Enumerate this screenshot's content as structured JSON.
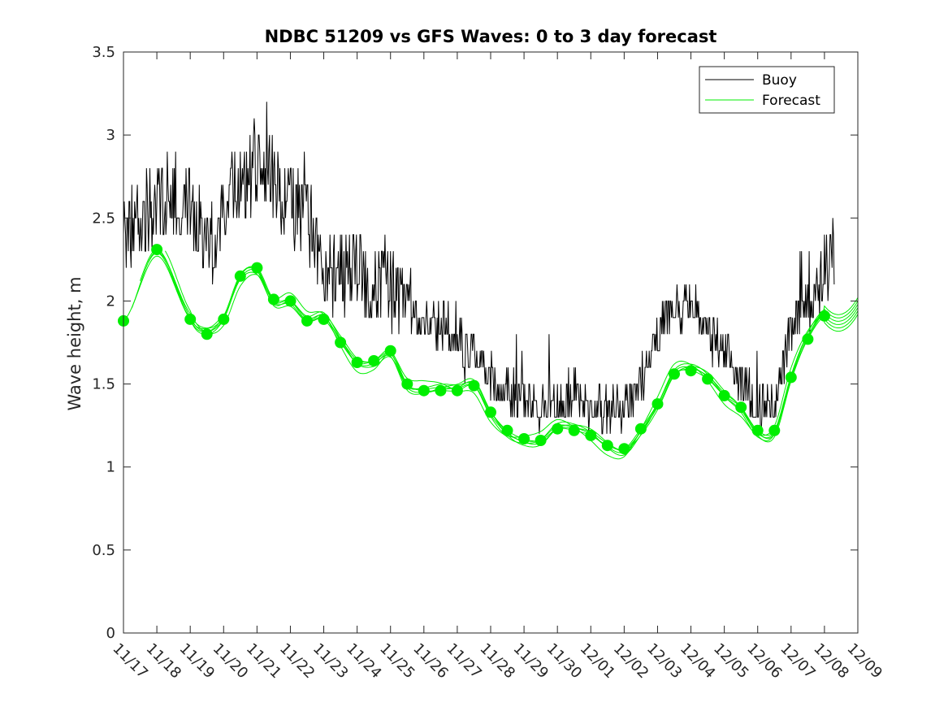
{
  "chart_data": {
    "type": "line",
    "title": "NDBC 51209 vs GFS Waves: 0 to 3 day forecast",
    "xlabel": "",
    "ylabel": "Wave height, m",
    "xlim": [
      0,
      22
    ],
    "ylim": [
      0,
      3.5
    ],
    "y_ticks": [
      0,
      0.5,
      1,
      1.5,
      2,
      2.5,
      3,
      3.5
    ],
    "y_tick_labels": [
      "0",
      "0.5",
      "1",
      "1.5",
      "2",
      "2.5",
      "3",
      "3.5"
    ],
    "x_tick_labels": [
      "11/17",
      "11/18",
      "11/19",
      "11/20",
      "11/21",
      "11/22",
      "11/23",
      "11/24",
      "11/25",
      "11/26",
      "11/27",
      "11/28",
      "11/29",
      "11/30",
      "12/01",
      "12/02",
      "12/03",
      "12/04",
      "12/05",
      "12/06",
      "12/07",
      "12/08",
      "12/09"
    ],
    "legend": {
      "placement": "top-right",
      "entries": [
        {
          "label": "Buoy",
          "color": "#000000"
        },
        {
          "label": "Forecast",
          "color": "#00ee00"
        }
      ]
    },
    "colors": {
      "buoy": "#000000",
      "forecast": "#00ee00",
      "marker": "#00ee00"
    },
    "buoy_anchors": [
      [
        0,
        2.4
      ],
      [
        0.5,
        2.5
      ],
      [
        1,
        2.6
      ],
      [
        1.5,
        2.65
      ],
      [
        2,
        2.6
      ],
      [
        2.5,
        2.4
      ],
      [
        2.8,
        2.3
      ],
      [
        3.1,
        2.6
      ],
      [
        3.5,
        2.7
      ],
      [
        4,
        2.8
      ],
      [
        4.5,
        2.7
      ],
      [
        5,
        2.6
      ],
      [
        5.5,
        2.5
      ],
      [
        6,
        2.2
      ],
      [
        6.5,
        2.2
      ],
      [
        7,
        2.15
      ],
      [
        7.5,
        2.1
      ],
      [
        8,
        2.1
      ],
      [
        8.5,
        1.95
      ],
      [
        9,
        1.9
      ],
      [
        9.5,
        1.85
      ],
      [
        10,
        1.8
      ],
      [
        10.5,
        1.7
      ],
      [
        11,
        1.55
      ],
      [
        11.5,
        1.45
      ],
      [
        12,
        1.4
      ],
      [
        12.5,
        1.38
      ],
      [
        13,
        1.4
      ],
      [
        13.5,
        1.45
      ],
      [
        14,
        1.35
      ],
      [
        14.5,
        1.35
      ],
      [
        15,
        1.35
      ],
      [
        15.5,
        1.5
      ],
      [
        16,
        1.8
      ],
      [
        16.5,
        1.95
      ],
      [
        17,
        2.0
      ],
      [
        17.5,
        1.85
      ],
      [
        18,
        1.7
      ],
      [
        18.5,
        1.55
      ],
      [
        19,
        1.35
      ],
      [
        19.5,
        1.4
      ],
      [
        20,
        1.8
      ],
      [
        20.5,
        2.0
      ],
      [
        21,
        2.2
      ],
      [
        21.3,
        2.35
      ]
    ],
    "forecast_markers": [
      {
        "x": 0,
        "y": 1.88
      },
      {
        "x": 1,
        "y": 2.31
      },
      {
        "x": 2,
        "y": 1.89
      },
      {
        "x": 2.5,
        "y": 1.8
      },
      {
        "x": 3,
        "y": 1.89
      },
      {
        "x": 3.5,
        "y": 2.15
      },
      {
        "x": 4,
        "y": 2.2
      },
      {
        "x": 4.5,
        "y": 2.01
      },
      {
        "x": 5,
        "y": 2.0
      },
      {
        "x": 5.5,
        "y": 1.88
      },
      {
        "x": 6,
        "y": 1.89
      },
      {
        "x": 6.5,
        "y": 1.75
      },
      {
        "x": 7,
        "y": 1.63
      },
      {
        "x": 7.5,
        "y": 1.64
      },
      {
        "x": 8,
        "y": 1.7
      },
      {
        "x": 8.5,
        "y": 1.5
      },
      {
        "x": 9,
        "y": 1.46
      },
      {
        "x": 9.5,
        "y": 1.46
      },
      {
        "x": 10,
        "y": 1.46
      },
      {
        "x": 10.5,
        "y": 1.49
      },
      {
        "x": 11,
        "y": 1.33
      },
      {
        "x": 11.5,
        "y": 1.22
      },
      {
        "x": 12,
        "y": 1.17
      },
      {
        "x": 12.5,
        "y": 1.16
      },
      {
        "x": 13,
        "y": 1.23
      },
      {
        "x": 13.5,
        "y": 1.22
      },
      {
        "x": 14,
        "y": 1.19
      },
      {
        "x": 14.5,
        "y": 1.13
      },
      {
        "x": 15,
        "y": 1.11
      },
      {
        "x": 15.5,
        "y": 1.23
      },
      {
        "x": 16,
        "y": 1.38
      },
      {
        "x": 16.5,
        "y": 1.56
      },
      {
        "x": 17,
        "y": 1.58
      },
      {
        "x": 17.5,
        "y": 1.53
      },
      {
        "x": 18,
        "y": 1.43
      },
      {
        "x": 18.5,
        "y": 1.36
      },
      {
        "x": 19,
        "y": 1.22
      },
      {
        "x": 19.5,
        "y": 1.22
      },
      {
        "x": 20,
        "y": 1.54
      },
      {
        "x": 20.5,
        "y": 1.77
      },
      {
        "x": 21,
        "y": 1.91
      }
    ],
    "forecast_run_offsets": [
      -0.04,
      -0.02,
      0.0,
      0.02,
      0.04,
      0.06
    ],
    "forecast_gap_x": [
      2.85,
      3.45
    ]
  }
}
